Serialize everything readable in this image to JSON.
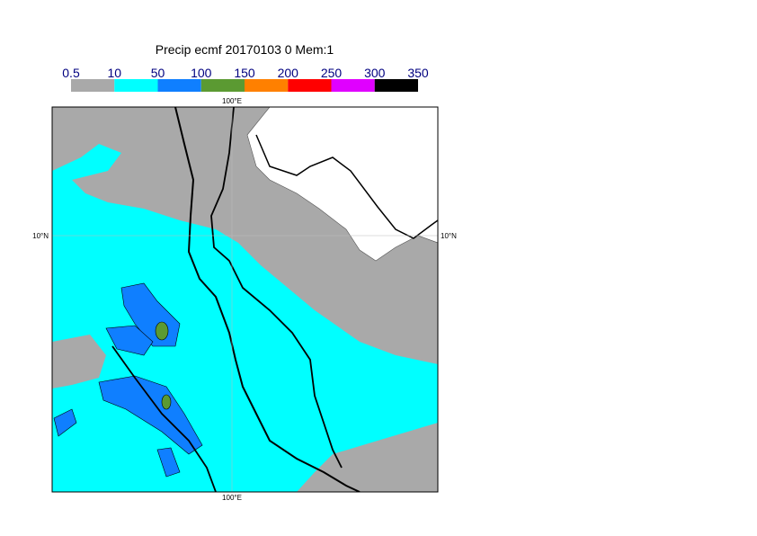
{
  "title": "Precip ecmf 20170103 0 Mem:1",
  "colorbar": {
    "labels": [
      "0.5",
      "10",
      "50",
      "100",
      "150",
      "200",
      "250",
      "300",
      "350"
    ],
    "colors": [
      "#a9a9a9",
      "#00ffff",
      "#0f7fff",
      "#5b9a32",
      "#ff8000",
      "#ff0000",
      "#e000ff",
      "#000000"
    ]
  },
  "map": {
    "lon_labels": [
      "100°E",
      "100°E"
    ],
    "lat_labels": [
      "10°N",
      "10°N"
    ]
  }
}
